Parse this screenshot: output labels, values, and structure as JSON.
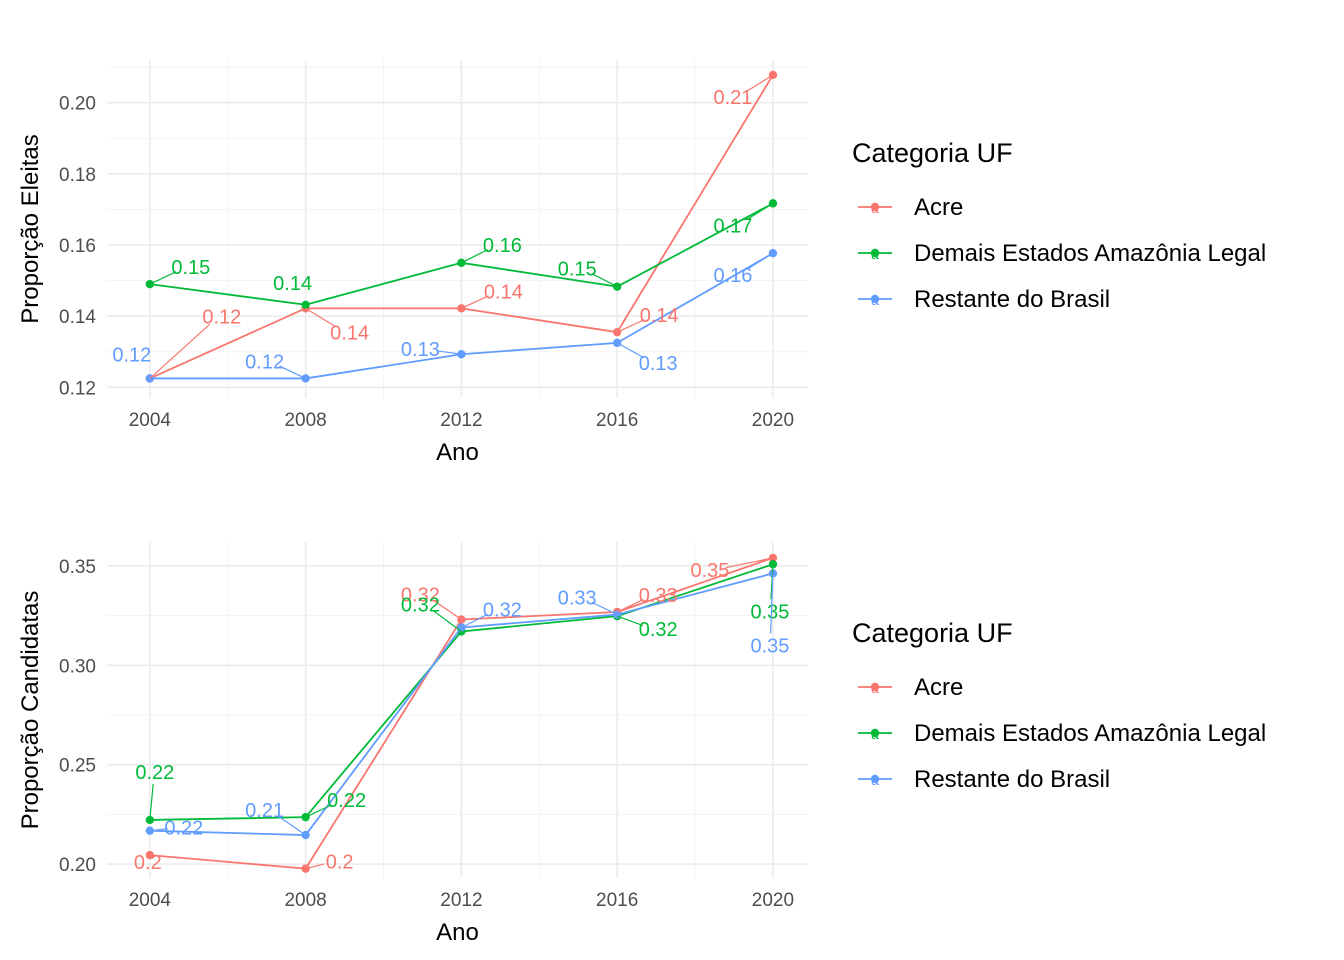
{
  "colors": {
    "Acre": "#F8766D",
    "Demais Estados Amazônia Legal": "#00BA38",
    "Restante do Brasil": "#619CFF"
  },
  "chart_data": [
    {
      "type": "line",
      "id": "eleitas",
      "x": [
        2004,
        2008,
        2012,
        2016,
        2020
      ],
      "xlabel": "Ano",
      "ylabel": "Proporção Eleitas",
      "xlim": [
        2002.9,
        2020.9
      ],
      "ylim": [
        0.117,
        0.212
      ],
      "y_ticks": [
        0.12,
        0.14,
        0.16,
        0.18,
        0.2
      ],
      "y_tick_labels": [
        "0.12",
        "0.14",
        "0.16",
        "0.18",
        "0.20"
      ],
      "x_tick_labels": [
        "2004",
        "2008",
        "2012",
        "2016",
        "2020"
      ],
      "grid": true,
      "legend_position": "right",
      "legend_title": "Categoria UF",
      "legend_glyph": "a",
      "series": [
        {
          "name": "Acre",
          "values": [
            0.1225,
            0.1422,
            0.1422,
            0.1355,
            0.2078
          ],
          "labels": [
            "0.12",
            "0.14",
            "0.14",
            "0.14",
            "0.21"
          ]
        },
        {
          "name": "Demais Estados Amazônia Legal",
          "values": [
            0.149,
            0.1432,
            0.155,
            0.1483,
            0.1717
          ],
          "labels": [
            "0.15",
            "0.14",
            "0.16",
            "0.15",
            "0.17"
          ]
        },
        {
          "name": "Restante do Brasil",
          "values": [
            0.1225,
            0.1225,
            0.1293,
            0.1325,
            0.1577
          ],
          "labels": [
            "0.12",
            "0.12",
            "0.13",
            "0.13",
            "0.16"
          ]
        }
      ]
    },
    {
      "type": "line",
      "id": "candidatas",
      "x": [
        2004,
        2008,
        2012,
        2016,
        2020
      ],
      "xlabel": "Ano",
      "ylabel": "Proporção Candidatas",
      "xlim": [
        2002.9,
        2020.9
      ],
      "ylim": [
        0.193,
        0.362
      ],
      "y_ticks": [
        0.2,
        0.25,
        0.3,
        0.35
      ],
      "y_tick_labels": [
        "0.20",
        "0.25",
        "0.30",
        "0.35"
      ],
      "x_tick_labels": [
        "2004",
        "2008",
        "2012",
        "2016",
        "2020"
      ],
      "grid": true,
      "legend_position": "right",
      "legend_title": "Categoria UF",
      "legend_glyph": "a",
      "series": [
        {
          "name": "Acre",
          "values": [
            0.2045,
            0.1977,
            0.323,
            0.3268,
            0.354
          ],
          "labels": [
            "0.2",
            "0.2",
            "0.32",
            "0.33",
            "0.35"
          ]
        },
        {
          "name": "Demais Estados Amazônia Legal",
          "values": [
            0.2222,
            0.2236,
            0.317,
            0.3247,
            0.3508
          ],
          "labels": [
            "0.22",
            "0.22",
            "0.32",
            "0.32",
            "0.35"
          ]
        },
        {
          "name": "Restante do Brasil",
          "values": [
            0.2168,
            0.2146,
            0.319,
            0.3255,
            0.3462
          ],
          "labels": [
            "0.22",
            "0.21",
            "0.32",
            "0.33",
            "0.35"
          ]
        }
      ]
    }
  ]
}
